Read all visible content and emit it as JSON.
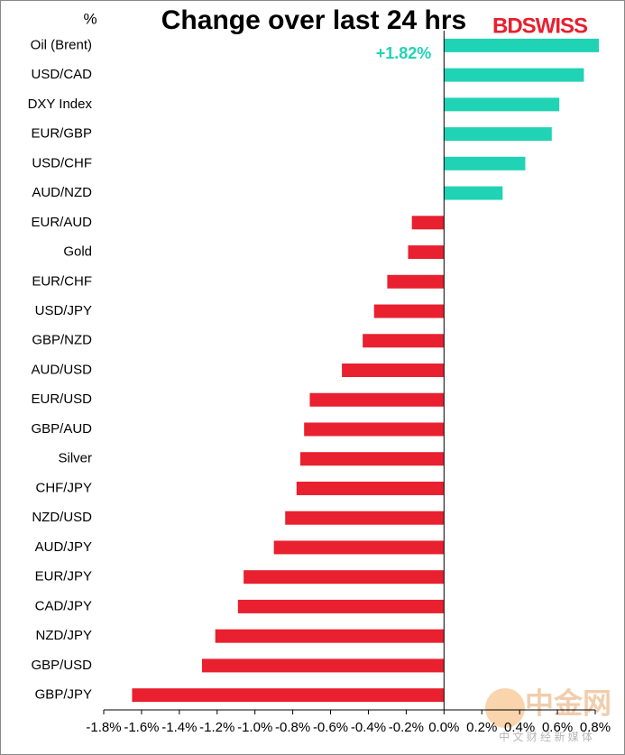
{
  "chart_data": {
    "type": "barh",
    "title": "Change over last 24 hrs",
    "y_unit_label": "%",
    "brand": "BDSWISS",
    "watermark": "中金网",
    "watermark_sub": "中 文 财 经 新 媒 体",
    "categories": [
      "Oil (Brent)",
      "USD/CAD",
      "DXY Index",
      "EUR/GBP",
      "USD/CHF",
      "AUD/NZD",
      "EUR/AUD",
      "Gold",
      "EUR/CHF",
      "USD/JPY",
      "GBP/NZD",
      "AUD/USD",
      "EUR/USD",
      "GBP/AUD",
      "Silver",
      "CHF/JPY",
      "NZD/USD",
      "AUD/JPY",
      "EUR/JPY",
      "CAD/JPY",
      "NZD/JPY",
      "GBP/USD",
      "GBP/JPY"
    ],
    "values": [
      1.82,
      0.74,
      0.61,
      0.57,
      0.43,
      0.31,
      -0.17,
      -0.19,
      -0.3,
      -0.37,
      -0.43,
      -0.54,
      -0.71,
      -0.74,
      -0.76,
      -0.78,
      -0.84,
      -0.9,
      -1.06,
      -1.09,
      -1.21,
      -1.28,
      -1.65
    ],
    "value_labels": [
      "+1.82%",
      null,
      null,
      null,
      null,
      null,
      null,
      null,
      null,
      null,
      null,
      null,
      null,
      null,
      null,
      null,
      null,
      null,
      null,
      null,
      null,
      null,
      null
    ],
    "positive_color": "#20d3b4",
    "negative_color": "#e8202f",
    "xlim": [
      -1.8,
      0.8
    ],
    "xticks": [
      {
        "value": -1.8,
        "label": "-1.8%"
      },
      {
        "value": -1.6,
        "label": "-1.6%"
      },
      {
        "value": -1.4,
        "label": "-1.4%"
      },
      {
        "value": -1.2,
        "label": "-1.2%"
      },
      {
        "value": -1.0,
        "label": "-1.0%"
      },
      {
        "value": -0.8,
        "label": "-0.8%"
      },
      {
        "value": -0.6,
        "label": "-0.6%"
      },
      {
        "value": -0.4,
        "label": "-0.4%"
      },
      {
        "value": -0.2,
        "label": "-0.2%"
      },
      {
        "value": 0,
        "label": "0.0%"
      },
      {
        "value": 0.2,
        "label": "0.2%"
      },
      {
        "value": 0.4,
        "label": "0.4%"
      },
      {
        "value": 0.6,
        "label": "0.6%"
      },
      {
        "value": 0.8,
        "label": "0.8%"
      }
    ],
    "grid": false
  }
}
